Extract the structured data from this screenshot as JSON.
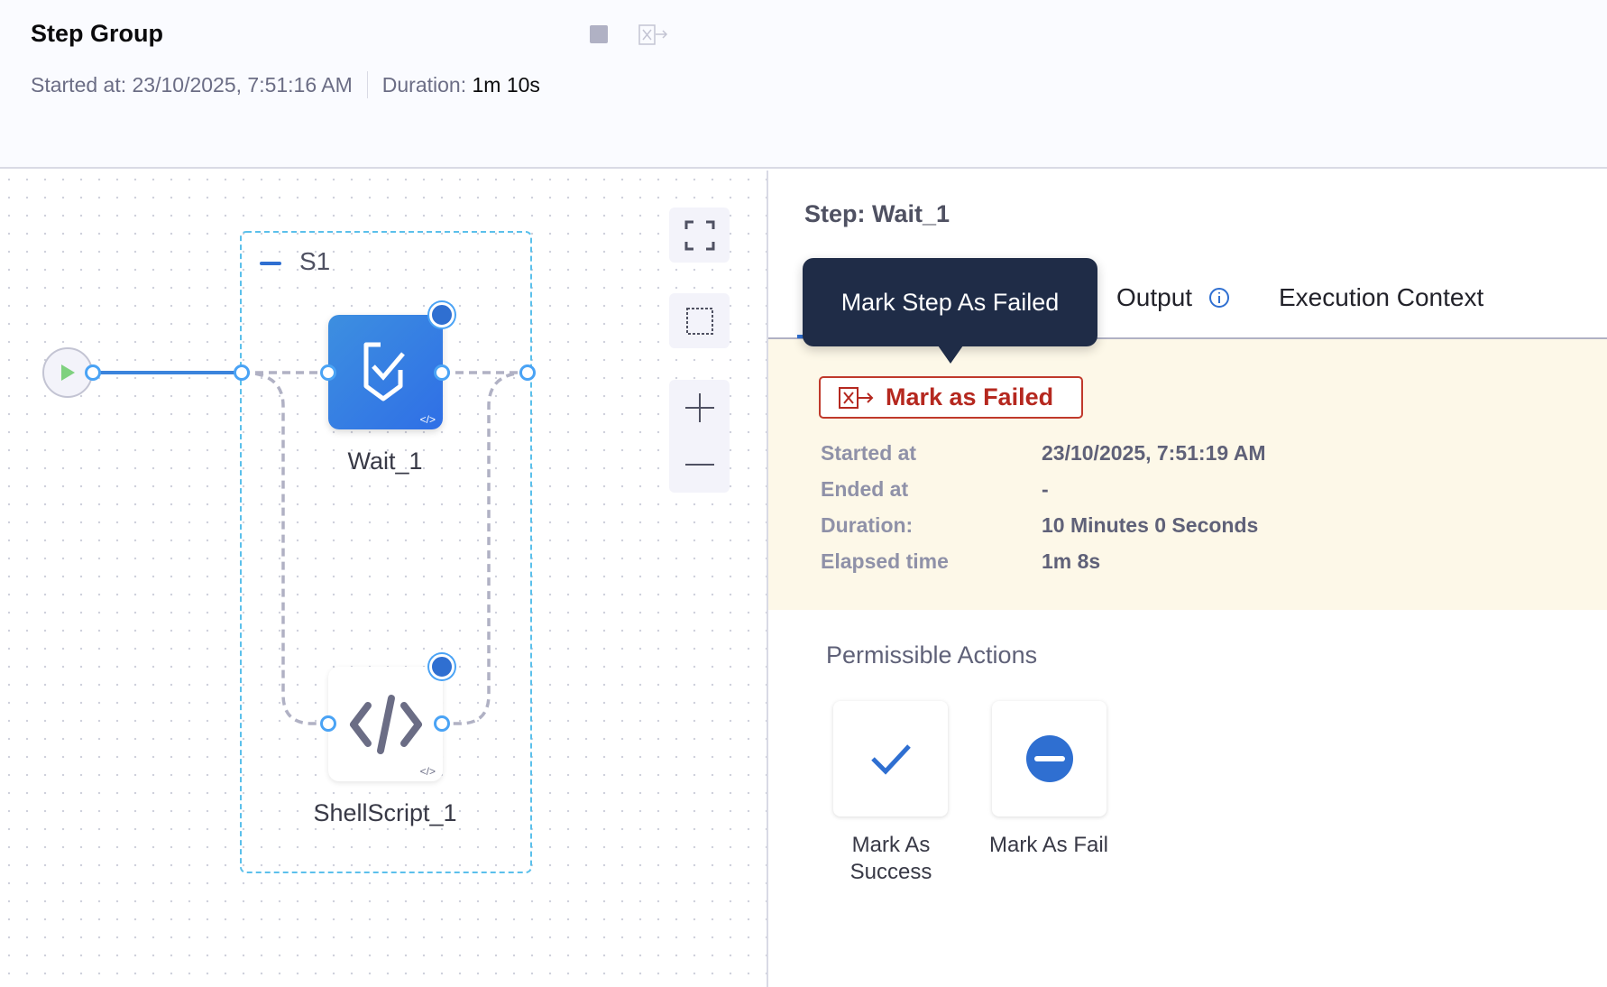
{
  "header": {
    "title": "Step Group",
    "started_label": "Started at: 23/10/2025, 7:51:16 AM",
    "duration_label": "Duration:",
    "duration_value": "1m 10s",
    "icons": [
      "stop-icon",
      "mark-failed-icon"
    ]
  },
  "canvas": {
    "group_label": "S1",
    "nodes": [
      {
        "name": "Wait_1",
        "status": "running"
      },
      {
        "name": "ShellScript_1",
        "status": "running"
      }
    ],
    "controls": [
      "fit-screen-icon",
      "select-area-icon",
      "zoom-in-icon",
      "zoom-out-icon"
    ]
  },
  "panel": {
    "title": "Step: Wait_1",
    "tabs": [
      {
        "label": "Output"
      },
      {
        "label": "Execution Context"
      }
    ],
    "tooltip": "Mark Step As Failed",
    "mark_failed_button": "Mark as Failed",
    "details": [
      {
        "label": "Started at",
        "value": "23/10/2025, 7:51:19 AM"
      },
      {
        "label": "Ended at",
        "value": "-"
      },
      {
        "label": "Duration:",
        "value": "10 Minutes 0 Seconds"
      },
      {
        "label": "Elapsed time",
        "value": "1m 8s"
      }
    ],
    "permissible_title": "Permissible Actions",
    "actions": [
      {
        "label": "Mark As Success"
      },
      {
        "label": "Mark As Fail"
      }
    ]
  },
  "colors": {
    "accent": "#2f6fd1",
    "failed": "#b5281f",
    "warning_bg": "#fdf8e8",
    "tooltip_bg": "#1f2c47"
  }
}
